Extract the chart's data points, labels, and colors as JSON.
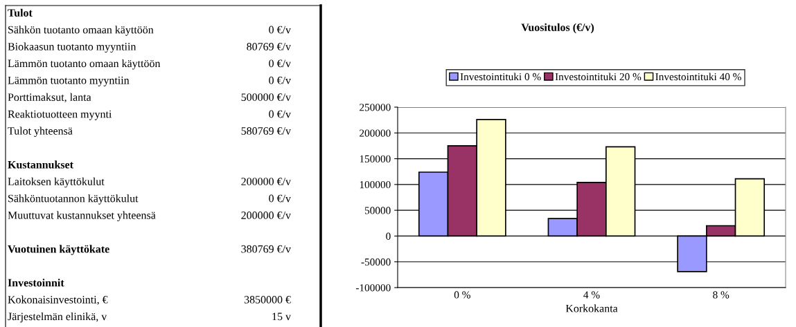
{
  "chart_data": [
    {
      "type": "other",
      "title": "Tulot",
      "annotations": [
        "Sähkön tuotanto omaan käyttöön",
        "0 €/v",
        "Biokaasun tuotanto myyntiin",
        "80769 €/v",
        "Lämmön tuotanto omaan käyttöön",
        "0 €/v",
        "Lämmön tuotanto myyntiin",
        "0 €/v",
        "Porttimaksut, lanta",
        "500000 €/v",
        "Reaktiotuotteen myynti",
        "0 €/v",
        "Tulot yhteensä",
        "580769 €/v"
      ]
    },
    {
      "type": "other",
      "title": "Kustannukset",
      "annotations": [
        "Laitoksen käyttökulut",
        "200000 €/v",
        "Sähköntuotannon käyttökulut",
        "0 €/v",
        "Muuttuvat kustannukset yhteensä",
        "200000 €/v"
      ]
    },
    {
      "type": "other",
      "title": "Vuotuinen käyttökate",
      "annotations": [
        "380769 €/v"
      ]
    },
    {
      "type": "other",
      "title": "Investoinnit",
      "annotations": [
        "Kokonaisinvestointi, €",
        "3850000 €",
        "Järjestelmän elinikä, v",
        "15 v"
      ]
    },
    {
      "type": "bar",
      "title": "Vuositulos (€/v)",
      "xlabel": "Korkokanta",
      "categories": [
        "0 %",
        "4 %",
        "8 %"
      ],
      "series": [
        {
          "name": "Investointituki 0 %",
          "color": "#9999ff",
          "values": [
            124000,
            34000,
            -69000
          ]
        },
        {
          "name": "Investointituki 20 %",
          "color": "#993366",
          "values": [
            175000,
            104000,
            20000
          ]
        },
        {
          "name": "Investointituki 40 %",
          "color": "#ffffcc",
          "values": [
            226000,
            173000,
            111000
          ]
        }
      ],
      "ylim": [
        -100000,
        250000
      ],
      "yticks": [
        -100000,
        -50000,
        0,
        50000,
        100000,
        150000,
        200000,
        250000
      ],
      "grid": "y",
      "legend": "top"
    }
  ]
}
